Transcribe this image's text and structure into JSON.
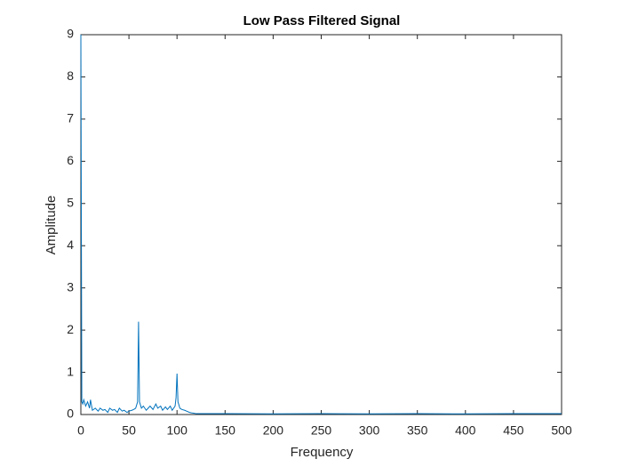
{
  "chart_data": {
    "type": "line",
    "title": "Low Pass Filtered Signal",
    "x_label": "Frequency",
    "y_label": "Amplitude",
    "x": [
      0,
      1,
      2,
      3,
      5,
      7,
      9,
      10,
      12,
      15,
      18,
      20,
      23,
      25,
      28,
      30,
      33,
      35,
      38,
      40,
      43,
      45,
      48,
      50,
      53,
      55,
      57,
      59,
      60,
      61,
      63,
      65,
      68,
      70,
      72,
      75,
      78,
      80,
      83,
      85,
      88,
      90,
      93,
      95,
      98,
      99,
      100,
      101,
      103,
      105,
      108,
      110,
      113,
      115,
      118,
      120,
      150,
      200,
      250,
      300,
      350,
      400,
      450,
      500
    ],
    "series": [
      {
        "name": "Amplitude",
        "color": "#0072bd",
        "values": [
          9,
          0.3,
          0.25,
          0.35,
          0.2,
          0.3,
          0.15,
          0.35,
          0.1,
          0.15,
          0.08,
          0.15,
          0.1,
          0.12,
          0.05,
          0.15,
          0.1,
          0.12,
          0.05,
          0.15,
          0.08,
          0.1,
          0.05,
          0.08,
          0.1,
          0.12,
          0.15,
          0.3,
          2.2,
          0.3,
          0.15,
          0.2,
          0.1,
          0.15,
          0.2,
          0.12,
          0.25,
          0.15,
          0.2,
          0.1,
          0.18,
          0.12,
          0.2,
          0.1,
          0.2,
          0.4,
          0.97,
          0.3,
          0.15,
          0.12,
          0.1,
          0.08,
          0.05,
          0.04,
          0.03,
          0.02,
          0.02,
          0.015,
          0.02,
          0.015,
          0.02,
          0.015,
          0.02,
          0.02
        ]
      }
    ],
    "xlim": [
      0,
      500
    ],
    "xticks": [
      0,
      50,
      100,
      150,
      200,
      250,
      300,
      350,
      400,
      450,
      500
    ],
    "ylim": [
      0,
      9
    ],
    "yticks": [
      0,
      1,
      2,
      3,
      4,
      5,
      6,
      7,
      8,
      9
    ]
  }
}
